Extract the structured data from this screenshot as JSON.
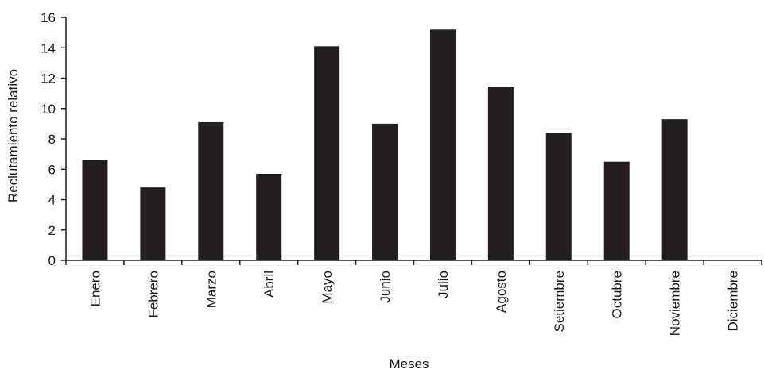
{
  "chart_data": {
    "type": "bar",
    "title": "",
    "xlabel": "Meses",
    "ylabel": "Reclutamiento relativo",
    "categories": [
      "Enero",
      "Febrero",
      "Marzo",
      "Abril",
      "Mayo",
      "Junio",
      "Julio",
      "Agosto",
      "Setiembre",
      "Octubre",
      "Noviembre",
      "Diciembre"
    ],
    "values": [
      6.6,
      4.8,
      9.1,
      5.7,
      14.1,
      9.0,
      15.2,
      11.4,
      8.4,
      6.5,
      9.3,
      0
    ],
    "ylim": [
      0,
      16
    ],
    "yticks": [
      0,
      2,
      4,
      6,
      8,
      10,
      12,
      14,
      16
    ],
    "grid": false,
    "legend": "none",
    "bar_color": "#231f20",
    "axis_color": "#231f20"
  }
}
